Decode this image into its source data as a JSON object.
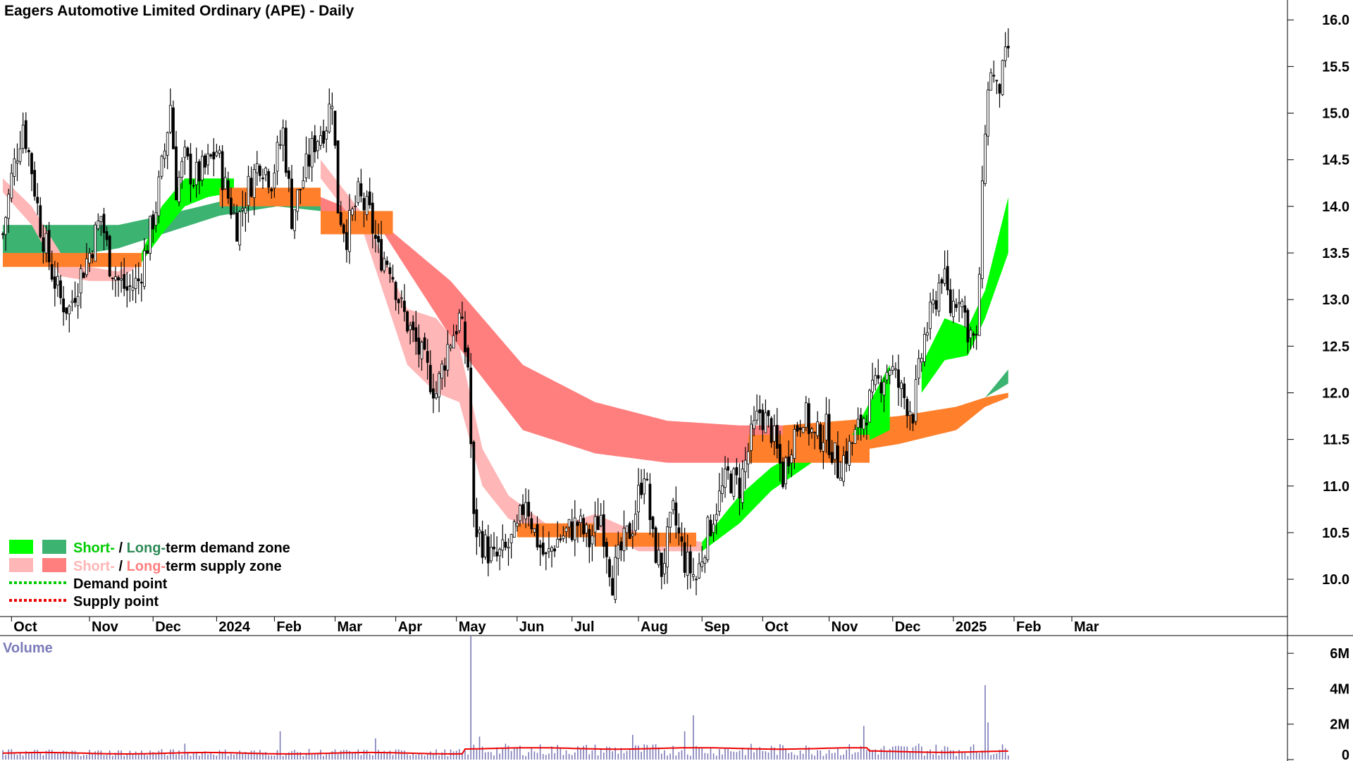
{
  "chart_data": {
    "type": "candlestick",
    "title": "Eagers Automotive Limited Ordinary (APE) - Daily",
    "price_axis": {
      "ticks": [
        "16.0",
        "15.5",
        "15.0",
        "14.5",
        "14.0",
        "13.5",
        "13.0",
        "12.5",
        "12.0",
        "11.5",
        "11.0",
        "10.5",
        "10.0"
      ],
      "range": [
        9.6,
        16.1
      ]
    },
    "volume_axis": {
      "label": "Volume",
      "ticks": [
        "6M",
        "4M",
        "2M",
        "0"
      ],
      "range": [
        0,
        7000000
      ]
    },
    "months": [
      "Oct",
      "Nov",
      "Dec",
      "2024",
      "Feb",
      "Mar",
      "Apr",
      "May",
      "Jun",
      "Jul",
      "Aug",
      "Sep",
      "Oct",
      "Nov",
      "Dec",
      "2025",
      "Feb",
      "Mar"
    ],
    "month_index": [
      3,
      30,
      52,
      74,
      94,
      115,
      136,
      157,
      178,
      197,
      220,
      242,
      263,
      286,
      308,
      329,
      350,
      370
    ],
    "legend": [
      {
        "text_a": "Short-",
        "sep": " / ",
        "text_b": "Long-",
        "rest": "term demand zone",
        "c1": "#00ff00",
        "c2": "#3cb371",
        "ca": "#00cc00",
        "cb": "#2e8b57"
      },
      {
        "text_a": "Short-",
        "sep": " / ",
        "text_b": "Long-",
        "rest": "term supply zone",
        "c1": "#ffb6b6",
        "c2": "#ff7f7f",
        "ca": "#ffb6b6",
        "cb": "#ff7f7f"
      },
      {
        "label": "Demand point",
        "color": "#00cc00"
      },
      {
        "label": "Supply point",
        "color": "#ee0000"
      }
    ],
    "colors": {
      "short_demand": "#00ff00",
      "long_demand": "#3cb371",
      "short_supply": "#ffb6b6",
      "long_supply": "#ff7f7f",
      "transition": "#ff7f2a",
      "candle": "#000000",
      "volume_bar": "#7b7bb8",
      "volume_ma": "#ee0000"
    },
    "price_anchors": [
      [
        0,
        13.7
      ],
      [
        3,
        14.3
      ],
      [
        7,
        14.9
      ],
      [
        10,
        14.4
      ],
      [
        13,
        13.8
      ],
      [
        17,
        13.3
      ],
      [
        20,
        13.0
      ],
      [
        23,
        12.9
      ],
      [
        26,
        13.2
      ],
      [
        30,
        13.5
      ],
      [
        34,
        13.9
      ],
      [
        37,
        13.4
      ],
      [
        40,
        13.2
      ],
      [
        43,
        13.1
      ],
      [
        47,
        13.2
      ],
      [
        50,
        13.6
      ],
      [
        53,
        14.0
      ],
      [
        56,
        14.6
      ],
      [
        58,
        15.1
      ],
      [
        60,
        14.2
      ],
      [
        63,
        14.5
      ],
      [
        66,
        14.3
      ],
      [
        70,
        14.4
      ],
      [
        74,
        14.6
      ],
      [
        77,
        14.2
      ],
      [
        81,
        13.8
      ],
      [
        85,
        14.2
      ],
      [
        89,
        14.5
      ],
      [
        93,
        14.3
      ],
      [
        97,
        14.8
      ],
      [
        100,
        13.9
      ],
      [
        104,
        14.3
      ],
      [
        108,
        14.7
      ],
      [
        112,
        14.9
      ],
      [
        114,
        15.2
      ],
      [
        116,
        14.0
      ],
      [
        119,
        13.7
      ],
      [
        123,
        14.1
      ],
      [
        127,
        13.9
      ],
      [
        130,
        13.5
      ],
      [
        134,
        13.4
      ],
      [
        138,
        12.9
      ],
      [
        142,
        12.6
      ],
      [
        146,
        12.3
      ],
      [
        150,
        12.0
      ],
      [
        154,
        12.5
      ],
      [
        158,
        12.8
      ],
      [
        161,
        12.3
      ],
      [
        163,
        10.6
      ],
      [
        166,
        10.4
      ],
      [
        170,
        10.2
      ],
      [
        174,
        10.3
      ],
      [
        178,
        10.5
      ],
      [
        181,
        10.9
      ],
      [
        184,
        10.5
      ],
      [
        188,
        10.2
      ],
      [
        191,
        10.4
      ],
      [
        195,
        10.5
      ],
      [
        199,
        10.6
      ],
      [
        203,
        10.4
      ],
      [
        207,
        10.7
      ],
      [
        211,
        10.0
      ],
      [
        214,
        10.3
      ],
      [
        218,
        10.6
      ],
      [
        222,
        11.2
      ],
      [
        225,
        10.4
      ],
      [
        228,
        10.1
      ],
      [
        232,
        10.7
      ],
      [
        236,
        10.2
      ],
      [
        240,
        10.0
      ],
      [
        243,
        10.4
      ],
      [
        247,
        10.8
      ],
      [
        251,
        11.1
      ],
      [
        255,
        11.0
      ],
      [
        259,
        11.5
      ],
      [
        262,
        11.8
      ],
      [
        266,
        11.6
      ],
      [
        270,
        11.1
      ],
      [
        273,
        11.5
      ],
      [
        277,
        11.8
      ],
      [
        281,
        11.5
      ],
      [
        285,
        11.6
      ],
      [
        289,
        11.2
      ],
      [
        293,
        11.4
      ],
      [
        296,
        11.6
      ],
      [
        300,
        11.9
      ],
      [
        303,
        12.1
      ],
      [
        307,
        12.3
      ],
      [
        311,
        12.0
      ],
      [
        315,
        11.8
      ],
      [
        319,
        12.6
      ],
      [
        322,
        12.9
      ],
      [
        325,
        13.3
      ],
      [
        328,
        12.9
      ],
      [
        331,
        13.1
      ],
      [
        334,
        12.7
      ],
      [
        337,
        12.5
      ],
      [
        340,
        14.9
      ],
      [
        342,
        15.5
      ],
      [
        344,
        15.2
      ],
      [
        346,
        15.4
      ],
      [
        348,
        15.7
      ]
    ],
    "short_demand_segments": [
      {
        "from": 48,
        "to": 80,
        "top": [
          [
            48,
            13.5
          ],
          [
            55,
            14.0
          ],
          [
            63,
            14.3
          ],
          [
            71,
            14.3
          ],
          [
            80,
            14.3
          ]
        ],
        "bottom": [
          [
            48,
            13.4
          ],
          [
            55,
            13.7
          ],
          [
            63,
            14.0
          ],
          [
            71,
            14.1
          ],
          [
            80,
            14.15
          ]
        ]
      },
      {
        "from": 242,
        "to": 307,
        "top": [
          [
            242,
            10.4
          ],
          [
            255,
            10.9
          ],
          [
            266,
            11.2
          ],
          [
            280,
            11.45
          ],
          [
            294,
            11.55
          ],
          [
            307,
            12.3
          ]
        ],
        "bottom": [
          [
            242,
            10.3
          ],
          [
            255,
            10.6
          ],
          [
            266,
            10.95
          ],
          [
            280,
            11.25
          ],
          [
            294,
            11.4
          ],
          [
            307,
            11.6
          ]
        ]
      },
      {
        "from": 318,
        "to": 348,
        "top": [
          [
            318,
            12.3
          ],
          [
            326,
            12.8
          ],
          [
            334,
            12.7
          ],
          [
            340,
            13.1
          ],
          [
            348,
            14.1
          ]
        ],
        "bottom": [
          [
            318,
            12.0
          ],
          [
            326,
            12.35
          ],
          [
            334,
            12.4
          ],
          [
            340,
            12.8
          ],
          [
            348,
            13.5
          ]
        ]
      }
    ],
    "long_demand_segments": [
      {
        "from": 0,
        "to": 110,
        "top": [
          [
            0,
            13.8
          ],
          [
            20,
            13.8
          ],
          [
            40,
            13.8
          ],
          [
            55,
            13.9
          ],
          [
            75,
            14.05
          ],
          [
            95,
            14.15
          ],
          [
            110,
            14.1
          ]
        ],
        "bottom": [
          [
            0,
            13.35
          ],
          [
            20,
            13.45
          ],
          [
            40,
            13.55
          ],
          [
            55,
            13.7
          ],
          [
            75,
            13.9
          ],
          [
            95,
            14.0
          ],
          [
            110,
            13.95
          ]
        ]
      },
      {
        "from": 340,
        "to": 348,
        "top": [
          [
            340,
            11.95
          ],
          [
            348,
            12.25
          ]
        ],
        "bottom": [
          [
            340,
            11.95
          ],
          [
            348,
            12.1
          ]
        ]
      }
    ],
    "short_supply_segments": [
      {
        "from": 0,
        "to": 48,
        "top": [
          [
            0,
            14.3
          ],
          [
            10,
            14.0
          ],
          [
            20,
            13.5
          ],
          [
            30,
            13.35
          ],
          [
            40,
            13.3
          ],
          [
            48,
            13.5
          ]
        ],
        "bottom": [
          [
            0,
            14.15
          ],
          [
            10,
            13.8
          ],
          [
            20,
            13.25
          ],
          [
            30,
            13.2
          ],
          [
            40,
            13.2
          ],
          [
            48,
            13.4
          ]
        ]
      },
      {
        "from": 110,
        "to": 242,
        "top": [
          [
            110,
            14.5
          ],
          [
            125,
            13.9
          ],
          [
            140,
            12.9
          ],
          [
            150,
            12.8
          ],
          [
            158,
            12.5
          ],
          [
            166,
            11.4
          ],
          [
            175,
            10.9
          ],
          [
            190,
            10.55
          ],
          [
            205,
            10.7
          ],
          [
            220,
            10.5
          ],
          [
            232,
            10.45
          ],
          [
            242,
            10.4
          ]
        ],
        "bottom": [
          [
            110,
            14.3
          ],
          [
            125,
            13.7
          ],
          [
            140,
            12.3
          ],
          [
            150,
            12.0
          ],
          [
            158,
            11.9
          ],
          [
            166,
            11.0
          ],
          [
            175,
            10.65
          ],
          [
            190,
            10.45
          ],
          [
            205,
            10.55
          ],
          [
            220,
            10.3
          ],
          [
            232,
            10.3
          ],
          [
            242,
            10.3
          ]
        ]
      }
    ],
    "long_supply_segments": [
      {
        "from": 110,
        "to": 270,
        "top": [
          [
            110,
            14.1
          ],
          [
            130,
            13.85
          ],
          [
            155,
            13.2
          ],
          [
            180,
            12.3
          ],
          [
            205,
            11.9
          ],
          [
            230,
            11.7
          ],
          [
            255,
            11.65
          ],
          [
            270,
            11.65
          ]
        ],
        "bottom": [
          [
            110,
            13.95
          ],
          [
            130,
            13.8
          ],
          [
            155,
            12.6
          ],
          [
            180,
            11.6
          ],
          [
            205,
            11.35
          ],
          [
            230,
            11.25
          ],
          [
            255,
            11.25
          ],
          [
            270,
            11.3
          ]
        ]
      },
      {
        "from": 270,
        "to": 348,
        "top": [
          [
            270,
            11.65
          ],
          [
            290,
            11.7
          ],
          [
            310,
            11.75
          ],
          [
            330,
            11.85
          ],
          [
            340,
            11.95
          ],
          [
            348,
            12.0
          ]
        ],
        "bottom": [
          [
            270,
            11.3
          ],
          [
            290,
            11.35
          ],
          [
            310,
            11.45
          ],
          [
            330,
            11.6
          ],
          [
            340,
            11.85
          ],
          [
            348,
            11.95
          ]
        ]
      }
    ],
    "volume_ma_value": 450000,
    "volume_spikes": [
      [
        63,
        900000
      ],
      [
        96,
        1600000
      ],
      [
        129,
        1200000
      ],
      [
        162,
        7000000
      ],
      [
        165,
        1300000
      ],
      [
        218,
        1400000
      ],
      [
        236,
        1600000
      ],
      [
        239,
        2500000
      ],
      [
        298,
        1900000
      ],
      [
        317,
        900000
      ],
      [
        340,
        4200000
      ],
      [
        341,
        2100000
      ]
    ]
  }
}
